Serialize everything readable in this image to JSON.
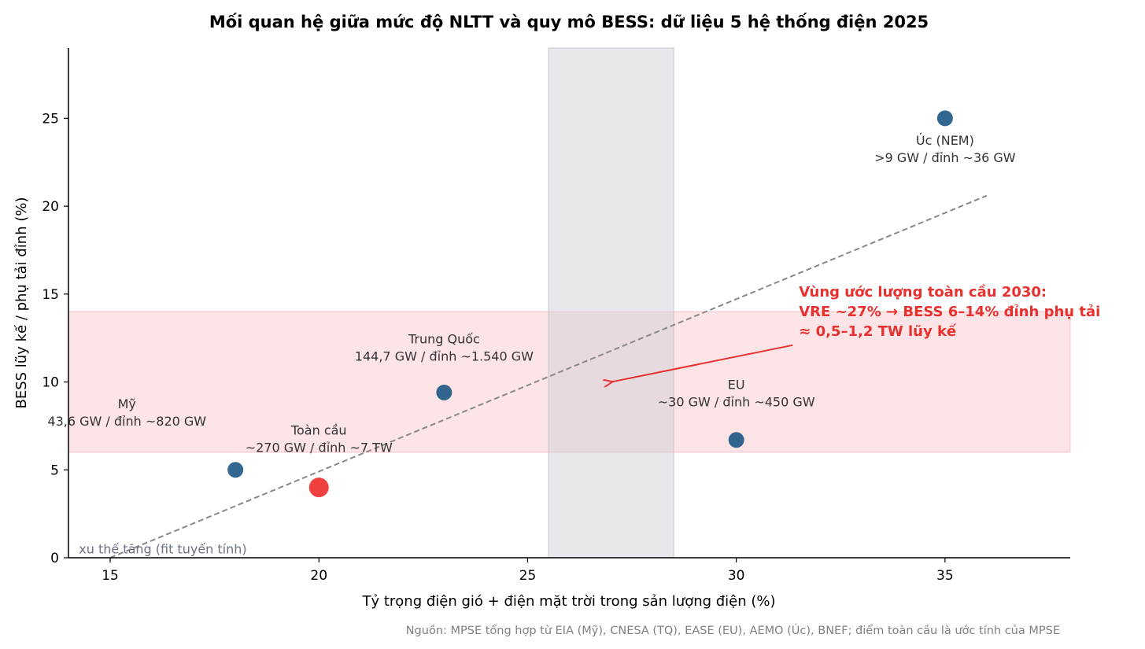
{
  "chart_data": {
    "type": "scatter",
    "title": "Mối quan hệ giữa mức độ NLTT và quy mô BESS: dữ liệu 5 hệ thống điện 2025",
    "xlabel": "Tỷ trọng điện gió + điện mặt trời trong sản lượng điện (%)",
    "ylabel": "BESS lũy kế / phụ tải đỉnh (%)",
    "xlim": [
      14,
      38
    ],
    "ylim": [
      0,
      29
    ],
    "xticks": [
      15,
      20,
      25,
      30,
      35
    ],
    "yticks": [
      0,
      5,
      10,
      15,
      20,
      25
    ],
    "grid": false,
    "points": [
      {
        "id": "us",
        "x": 18,
        "y": 5,
        "color": "#1f5a87",
        "label_lines": [
          "Mỹ",
          "43,6 GW / đỉnh ~820 GW"
        ],
        "label_pos": [
          15.4,
          8.5
        ]
      },
      {
        "id": "global",
        "x": 20,
        "y": 4,
        "color": "#f03030",
        "highlight": true,
        "label_lines": [
          "Toàn cầu",
          "~270 GW / đỉnh ~7 TW"
        ],
        "label_pos": [
          20,
          7
        ]
      },
      {
        "id": "china",
        "x": 23,
        "y": 9.4,
        "color": "#1f5a87",
        "label_lines": [
          "Trung Quốc",
          "144,7 GW / đỉnh ~1.540 GW"
        ],
        "label_pos": [
          23,
          12.2
        ]
      },
      {
        "id": "eu",
        "x": 30,
        "y": 6.7,
        "color": "#1f5a87",
        "label_lines": [
          "EU",
          "~30 GW / đỉnh ~450 GW"
        ],
        "label_pos": [
          30,
          9.6
        ]
      },
      {
        "id": "au",
        "x": 35,
        "y": 25,
        "color": "#1f5a87",
        "label_lines": [
          "Úc (NEM)",
          ">9 GW / đỉnh ~36 GW"
        ],
        "label_pos": [
          35,
          23.5
        ]
      }
    ],
    "trend": {
      "label": "xu thế tăng (fit tuyến tính)",
      "x0": 15,
      "y0": 0,
      "x1": 36,
      "y1": 20.6,
      "color": "#888888"
    },
    "band_horizontal": {
      "y_from": 6,
      "y_to": 14,
      "color": "#fbd0d3"
    },
    "band_vertical": {
      "x_from": 25.5,
      "x_to": 28.5,
      "color": "#c9ccd2"
    },
    "annotation": {
      "lines": [
        "Vùng ước lượng toàn cầu 2030:",
        "VRE ~27% → BESS 6–14% đỉnh phụ tải",
        "≈ 0,5–1,2 TW lũy kế"
      ],
      "color": "#e8312f",
      "text_at": [
        31.5,
        15
      ],
      "arrow_to": [
        27,
        10
      ]
    }
  },
  "source": "Nguồn: MPSE tổng hợp từ EIA (Mỹ), CNESA (TQ), EASE (EU), AEMO (Úc), BNEF; điểm toàn cầu là ước tính của MPSE"
}
